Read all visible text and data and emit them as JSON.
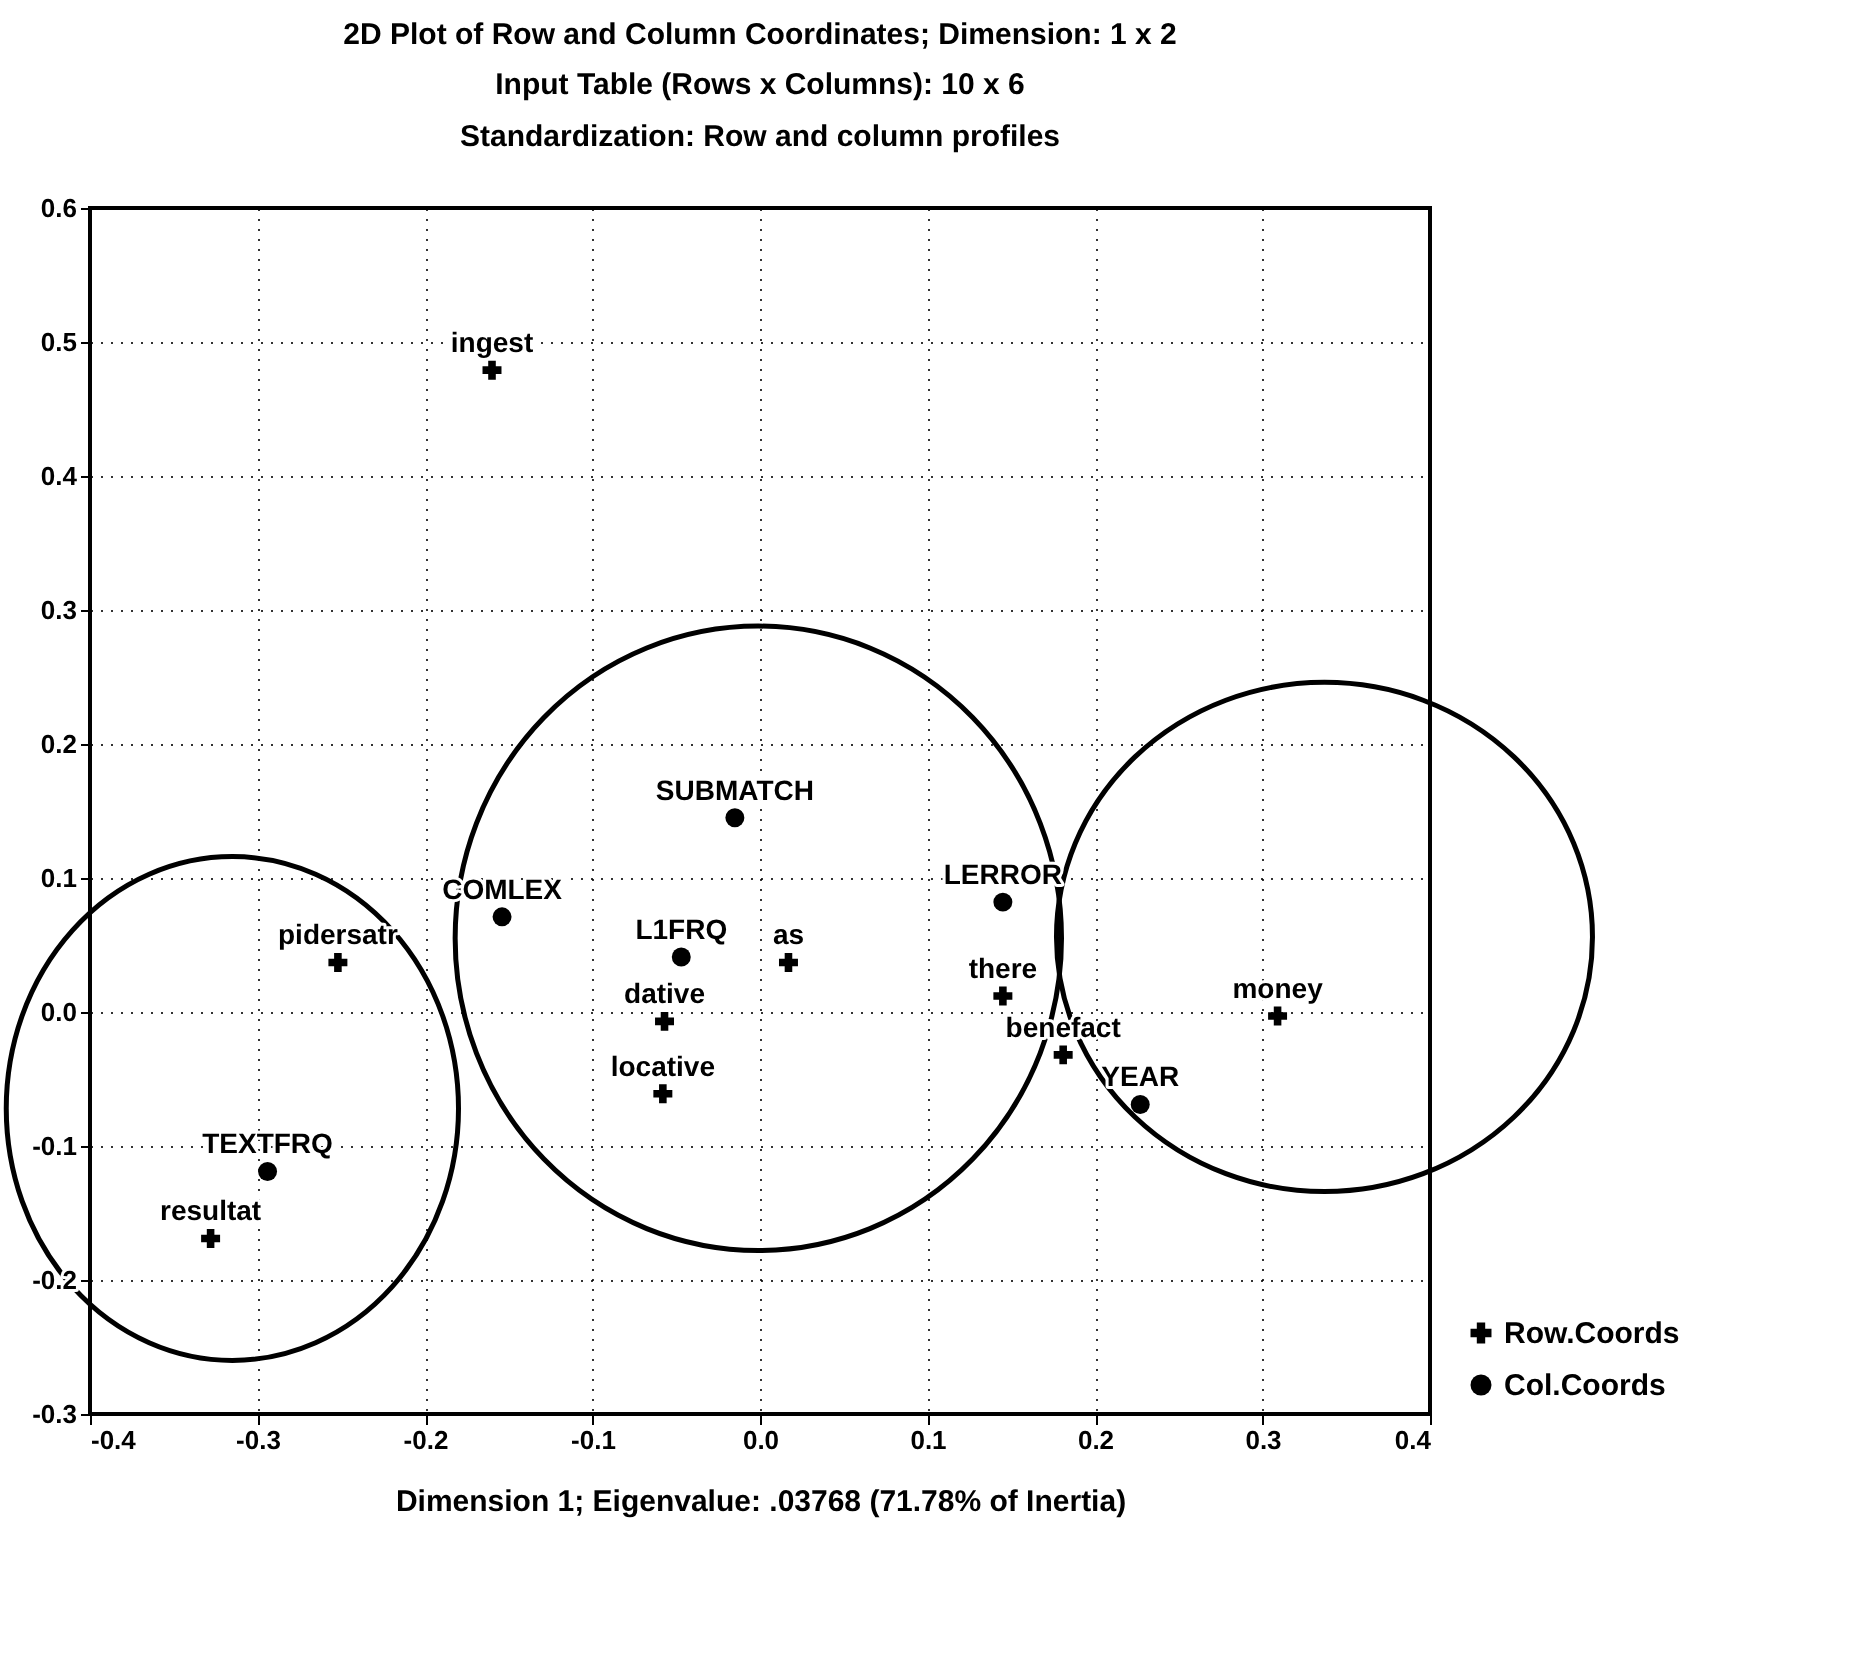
{
  "chart_data": {
    "type": "scatter",
    "title": "2D Plot of Row and Column Coordinates; Dimension: 1 x 2",
    "subtitle": [
      "Input Table (Rows x Columns): 10 x 6",
      "Standardization: Row and column profiles"
    ],
    "xlabel": "Dimension 1; Eigenvalue: .03768 (71.78% of Inertia)",
    "series": [
      {
        "name": "Row.Coords",
        "color": "#000000",
        "marker": "cross",
        "x": [
          -0.16,
          -0.252,
          0.017,
          -0.057,
          -0.058,
          0.145,
          0.181,
          0.309,
          -0.328
        ],
        "values": [
          0.479,
          0.037,
          0.037,
          -0.007,
          -0.061,
          0.012,
          -0.032,
          -0.003,
          -0.169
        ]
      },
      {
        "name": "Col.Coords",
        "color": "#000000",
        "marker": "circle",
        "x": [
          -0.015,
          -0.154,
          -0.047,
          0.145,
          0.227,
          -0.294
        ],
        "values": [
          0.145,
          0.071,
          0.041,
          0.082,
          -0.069,
          -0.119
        ]
      }
    ],
    "annotations": [
      {
        "text": "ingest",
        "x": -0.16,
        "y": 0.479
      },
      {
        "text": "pidersatr",
        "x": -0.252,
        "y": 0.037
      },
      {
        "text": "as",
        "x": 0.017,
        "y": 0.037
      },
      {
        "text": "dative",
        "x": -0.057,
        "y": -0.007
      },
      {
        "text": "locative",
        "x": -0.058,
        "y": -0.061
      },
      {
        "text": "there",
        "x": 0.145,
        "y": 0.012
      },
      {
        "text": "benefact",
        "x": 0.181,
        "y": -0.032
      },
      {
        "text": "money",
        "x": 0.309,
        "y": -0.003
      },
      {
        "text": "resultat",
        "x": -0.328,
        "y": -0.169
      },
      {
        "text": "SUBMATCH",
        "x": -0.015,
        "y": 0.145
      },
      {
        "text": "COMLEX",
        "x": -0.154,
        "y": 0.071
      },
      {
        "text": "L1FRQ",
        "x": -0.047,
        "y": 0.041
      },
      {
        "text": "LERROR",
        "x": 0.145,
        "y": 0.082
      },
      {
        "text": "YEAR",
        "x": 0.227,
        "y": -0.069
      },
      {
        "text": "TEXTFRQ",
        "x": -0.294,
        "y": -0.119
      }
    ],
    "xlim": [
      -0.4,
      0.4
    ],
    "xticks": [
      -0.4,
      -0.3,
      -0.2,
      -0.1,
      {
        "value": 0,
        "label": "0.0"
      },
      0.1,
      0.2,
      0.3,
      0.4
    ],
    "ylim": [
      -0.3,
      0.6
    ],
    "yticks": [
      -0.3,
      -0.2,
      -0.1,
      {
        "value": 0,
        "label": "0.0"
      },
      0.1,
      0.2,
      0.3,
      0.4,
      0.5,
      0.6
    ],
    "grid": true,
    "legend": "bottom right"
  }
}
